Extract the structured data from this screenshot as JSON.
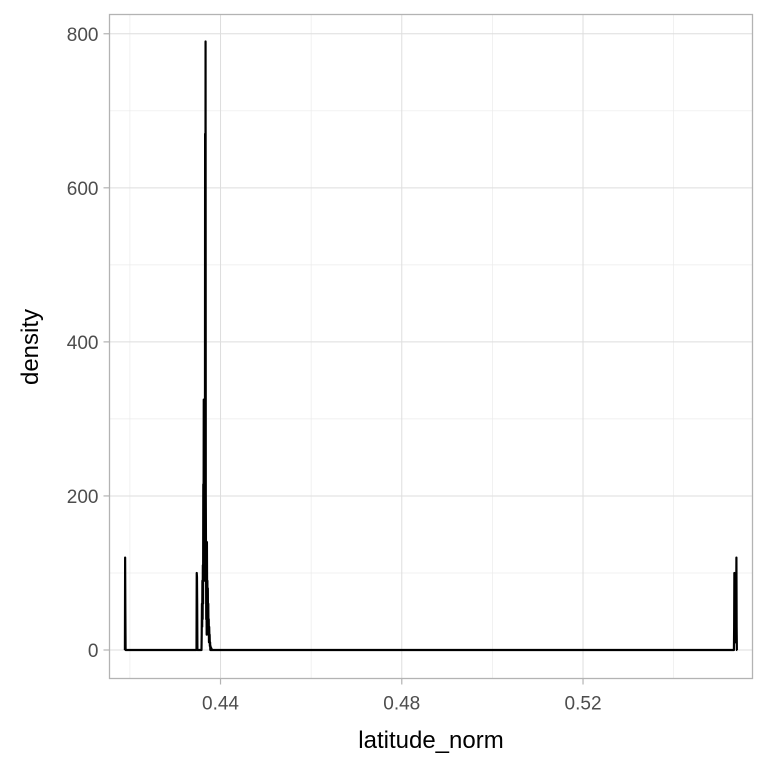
{
  "chart_data": {
    "type": "line",
    "xlabel": "latitude_norm",
    "ylabel": "density",
    "xlim": [
      0.4155,
      0.5574
    ],
    "ylim": [
      -37,
      825
    ],
    "x_ticks": [
      0.44,
      0.48,
      0.52
    ],
    "x_tick_labels": [
      "0.44",
      "0.48",
      "0.52"
    ],
    "y_ticks": [
      0,
      200,
      400,
      600,
      800
    ],
    "y_tick_labels": [
      "0",
      "200",
      "400",
      "600",
      "800"
    ],
    "grid": true,
    "theme": "light",
    "series": [
      {
        "color": "#000000",
        "x": [
          0.4189,
          0.41895,
          0.419,
          0.41905,
          0.4191,
          0.41915,
          0.4347,
          0.43475,
          0.4348,
          0.43485,
          0.4349,
          0.4358,
          0.43585,
          0.4359,
          0.43595,
          0.436,
          0.43605,
          0.4361,
          0.43615,
          0.4362,
          0.43625,
          0.4363,
          0.43635,
          0.4364,
          0.43645,
          0.4365,
          0.43655,
          0.4366,
          0.43665,
          0.4367,
          0.43675,
          0.4368,
          0.43685,
          0.4369,
          0.43695,
          0.437,
          0.43705,
          0.4371,
          0.43715,
          0.4372,
          0.43725,
          0.4373,
          0.43735,
          0.4374,
          0.43745,
          0.4375,
          0.43755,
          0.4376,
          0.43765,
          0.4377,
          0.43775,
          0.4378,
          0.43785,
          0.4379,
          0.43795,
          0.438,
          0.43805,
          0.4381,
          0.43815,
          0.4382,
          0.43825,
          0.4383,
          0.43835,
          0.4384,
          0.43845,
          0.4385,
          0.43855,
          0.4386,
          0.43865,
          0.4387,
          0.43875,
          0.4388,
          0.43885,
          0.4389,
          0.43895,
          0.439,
          0.43905,
          0.4391,
          0.43915,
          0.4392,
          0.43925,
          0.4393,
          0.43935,
          0.4394,
          0.43945,
          0.4395,
          0.43955,
          0.4396,
          0.43965,
          0.4397,
          0.43975,
          0.4398,
          0.43985,
          0.4399,
          0.43995,
          0.44,
          0.44005,
          0.5533,
          0.55335,
          0.5534,
          0.55345,
          0.5535,
          0.55355,
          0.5536,
          0.55365,
          0.5537,
          0.55375,
          0.5538,
          0.55385,
          0.5539,
          0.55395,
          0.554,
          0.55405
        ],
        "y": [
          0,
          120,
          50,
          0,
          0,
          0,
          0,
          100,
          95,
          60,
          0,
          0,
          20,
          60,
          30,
          90,
          40,
          110,
          60,
          215,
          120,
          325,
          160,
          320,
          90,
          240,
          130,
          670,
          300,
          790,
          200,
          120,
          40,
          70,
          20,
          140,
          60,
          90,
          30,
          80,
          25,
          60,
          20,
          40,
          10,
          30,
          15,
          20,
          5,
          10,
          0,
          5,
          0,
          3,
          0,
          2,
          0,
          0,
          0,
          0,
          0,
          0,
          0,
          0,
          0,
          0,
          0,
          0,
          0,
          0,
          0,
          0,
          0,
          0,
          0,
          0,
          0,
          0,
          0,
          0,
          0,
          0,
          0,
          0,
          0,
          0,
          0,
          0,
          0,
          0,
          0,
          0,
          0,
          0,
          0,
          0,
          0,
          0,
          30,
          100,
          60,
          95,
          40,
          85,
          20,
          10,
          90,
          50,
          120,
          30,
          0,
          0,
          0
        ]
      }
    ]
  }
}
